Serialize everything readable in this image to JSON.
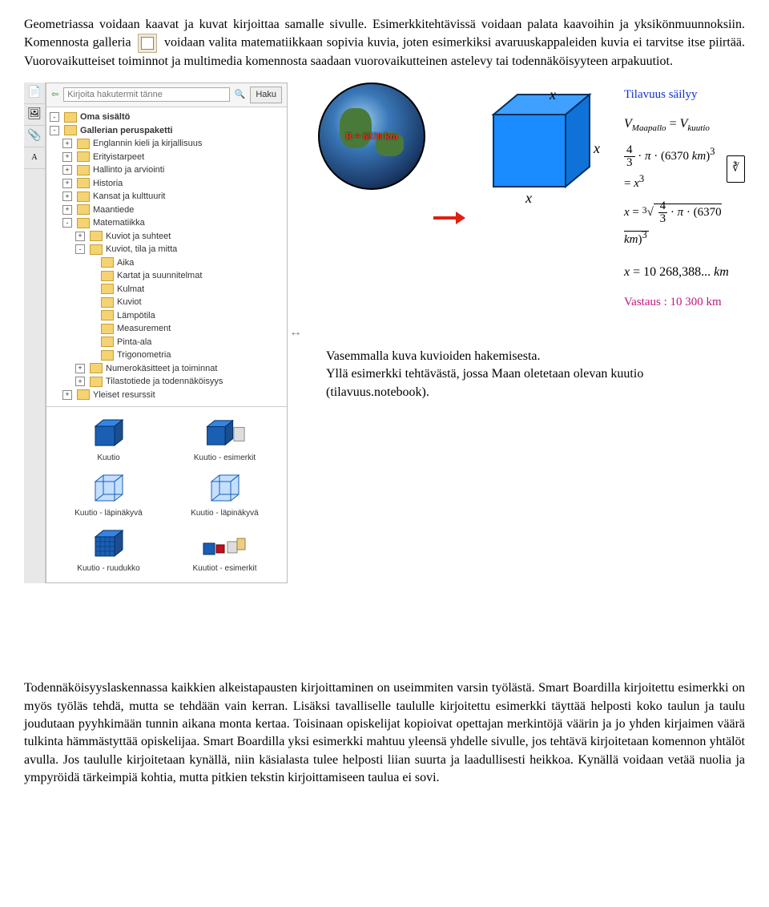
{
  "para1_a": "Geometriassa voidaan kaavat ja kuvat kirjoittaa samalle sivulle. Esimerkkitehtävissä voidaan palata kaavoihin ja yksikönmuunnoksiin. Komennosta galleria",
  "para1_b": "voidaan valita matematiikkaan sopivia kuvia, joten esimerkiksi avaruuskappaleiden kuvia ei tarvitse itse piirtää. Vuorovaikutteiset toiminnot ja multimedia komennosta saadaan vuorovaikutteinen astelevy tai todennäköisyyteen arpakuutiot.",
  "gallery": {
    "search_placeholder": "Kirjoita hakutermit tänne",
    "search_btn": "Haku",
    "tree": [
      {
        "lvl": 0,
        "pm": "-",
        "label": "Oma sisältö",
        "bold": true
      },
      {
        "lvl": 0,
        "pm": "-",
        "label": "Gallerian peruspaketti",
        "bold": true
      },
      {
        "lvl": 1,
        "pm": "+",
        "label": "Englannin kieli ja kirjallisuus"
      },
      {
        "lvl": 1,
        "pm": "+",
        "label": "Erityistarpeet"
      },
      {
        "lvl": 1,
        "pm": "+",
        "label": "Hallinto ja arviointi"
      },
      {
        "lvl": 1,
        "pm": "+",
        "label": "Historia"
      },
      {
        "lvl": 1,
        "pm": "+",
        "label": "Kansat ja kulttuurit"
      },
      {
        "lvl": 1,
        "pm": "+",
        "label": "Maantiede"
      },
      {
        "lvl": 1,
        "pm": "-",
        "label": "Matematiikka"
      },
      {
        "lvl": 2,
        "pm": "+",
        "label": "Kuviot ja suhteet"
      },
      {
        "lvl": 2,
        "pm": "-",
        "label": "Kuviot, tila ja mitta"
      },
      {
        "lvl": 3,
        "pm": "",
        "label": "Aika"
      },
      {
        "lvl": 3,
        "pm": "",
        "label": "Kartat ja suunnitelmat"
      },
      {
        "lvl": 3,
        "pm": "",
        "label": "Kulmat"
      },
      {
        "lvl": 3,
        "pm": "",
        "label": "Kuviot"
      },
      {
        "lvl": 3,
        "pm": "",
        "label": "Lämpötila"
      },
      {
        "lvl": 3,
        "pm": "",
        "label": "Measurement"
      },
      {
        "lvl": 3,
        "pm": "",
        "label": "Pinta-ala"
      },
      {
        "lvl": 3,
        "pm": "",
        "label": "Trigonometria"
      },
      {
        "lvl": 2,
        "pm": "+",
        "label": "Numerokäsitteet ja toiminnat"
      },
      {
        "lvl": 2,
        "pm": "+",
        "label": "Tilastotiede ja todennäköisyys"
      },
      {
        "lvl": 1,
        "pm": "+",
        "label": "Yleiset resurssit"
      }
    ],
    "thumbs": [
      {
        "label": "Kuutio",
        "type": "solid"
      },
      {
        "label": "Kuutio - esimerkit",
        "type": "solid-multi"
      },
      {
        "label": "Kuutio - läpinäkyvä",
        "type": "wire"
      },
      {
        "label": "Kuutio - läpinäkyvä",
        "type": "wire"
      },
      {
        "label": "Kuutio - ruudukko",
        "type": "grid"
      },
      {
        "label": "Kuutiot - esimerkit",
        "type": "multi"
      }
    ]
  },
  "example": {
    "earth_radius": "R = 6370 km",
    "cube_x": "x",
    "formula_title": "Tilavuus säilyy",
    "f1_lhs_sub": "Maapallo",
    "f1_rhs_sub": "kuutio",
    "f2": "4/3 · π · (6370 km)³ = x³",
    "root_note": "∛",
    "f3": "x = ∛(4/3 · π · (6370 km)³)",
    "f4": "x = 10 268,388... km",
    "answer": "Vastaus : 10 300 km"
  },
  "caption1": "Vasemmalla kuva kuvioiden hakemisesta.",
  "caption2": "Yllä esimerkki tehtävästä, jossa Maan oletetaan olevan kuutio (tilavuus.notebook).",
  "para2": "Todennäköisyyslaskennassa kaikkien alkeistapausten kirjoittaminen on useimmiten varsin työlästä. Smart Boardilla kirjoitettu esimerkki on myös työläs tehdä, mutta se tehdään vain kerran. Lisäksi tavalliselle taululle kirjoitettu esimerkki täyttää helposti koko taulun ja taulu joudutaan pyyhkimään tunnin aikana monta kertaa. Toisinaan opiskelijat kopioivat opettajan merkintöjä väärin ja jo yhden kirjaimen väärä tulkinta hämmästyttää opiskelijaa. Smart Boardilla yksi esimerkki mahtuu yleensä yhdelle sivulle, jos tehtävä kirjoitetaan komennon yhtälöt avulla. Jos taululle kirjoitetaan kynällä, niin käsialasta tulee helposti liian suurta ja laadullisesti heikkoa. Kynällä voidaan vetää nuolia ja ympyröidä tärkeimpiä kohtia, mutta pitkien tekstin kirjoittamiseen taulua ei sovi."
}
